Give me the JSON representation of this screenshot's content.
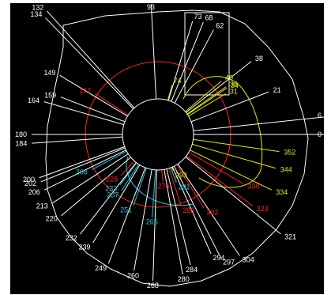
{
  "colors": {
    "background": "#000000",
    "white": "#ffffff",
    "red": "#ff2020",
    "yellow": "#e8e800",
    "cyan": "#20c8e0",
    "border": "#ffffff"
  },
  "rays": [
    {
      "label": "93",
      "angle": 93,
      "len": 165,
      "color": "white"
    },
    {
      "label": "73",
      "angle": 73,
      "len": 150,
      "color": "white"
    },
    {
      "label": "68",
      "angle": 68,
      "len": 153,
      "color": "white"
    },
    {
      "label": "62",
      "angle": 62,
      "len": 150,
      "color": "white"
    },
    {
      "label": "38",
      "angle": 38,
      "len": 150,
      "color": "white"
    },
    {
      "label": "21",
      "angle": 21,
      "len": 150,
      "color": "white"
    },
    {
      "label": "6",
      "angle": 6,
      "len": 222,
      "color": "white"
    },
    {
      "label": "0",
      "angle": 0,
      "len": 222,
      "color": "white"
    },
    {
      "label": "132",
      "angle": 132,
      "len": 210,
      "color": "white"
    },
    {
      "label": "134",
      "angle": 134,
      "len": 205,
      "color": "white"
    },
    {
      "label": "149",
      "angle": 149,
      "len": 145,
      "color": "white"
    },
    {
      "label": "159",
      "angle": 159,
      "len": 132,
      "color": "white"
    },
    {
      "label": "164",
      "angle": 164,
      "len": 150,
      "color": "white"
    },
    {
      "label": "180",
      "angle": 180,
      "len": 160,
      "color": "white"
    },
    {
      "label": "184",
      "angle": 184,
      "len": 160,
      "color": "white"
    },
    {
      "label": "200",
      "angle": 200,
      "len": 160,
      "color": "white"
    },
    {
      "label": "202",
      "angle": 202,
      "len": 160,
      "color": "white"
    },
    {
      "label": "206",
      "angle": 206,
      "len": 160,
      "color": "white"
    },
    {
      "label": "213",
      "angle": 213,
      "len": 160,
      "color": "white"
    },
    {
      "label": "220",
      "angle": 220,
      "len": 160,
      "color": "white"
    },
    {
      "label": "232",
      "angle": 232,
      "len": 160,
      "color": "white"
    },
    {
      "label": "239",
      "angle": 239,
      "len": 160,
      "color": "white"
    },
    {
      "label": "249",
      "angle": 249,
      "len": 175,
      "color": "white"
    },
    {
      "label": "260",
      "angle": 260,
      "len": 175,
      "color": "white"
    },
    {
      "label": "268",
      "angle": 268,
      "len": 185,
      "color": "white"
    },
    {
      "label": "280",
      "angle": 280,
      "len": 180,
      "color": "white"
    },
    {
      "label": "284",
      "angle": 284,
      "len": 170,
      "color": "white"
    },
    {
      "label": "294",
      "angle": 294,
      "len": 165,
      "color": "white"
    },
    {
      "label": "297",
      "angle": 297,
      "len": 175,
      "color": "white"
    },
    {
      "label": "304",
      "angle": 304,
      "len": 185,
      "color": "white"
    },
    {
      "label": "321",
      "angle": 321,
      "len": 200,
      "color": "white"
    },
    {
      "label": "74",
      "angle": 74,
      "len": 65,
      "color": "yellow"
    },
    {
      "label": "40",
      "angle": 40,
      "len": 105,
      "color": "yellow"
    },
    {
      "label": "35",
      "angle": 35,
      "len": 105,
      "color": "yellow"
    },
    {
      "label": "31",
      "angle": 31,
      "len": 100,
      "color": "yellow"
    },
    {
      "label": "34",
      "angle": 34,
      "len": 105,
      "color": "yellow"
    },
    {
      "label": "352",
      "angle": 352,
      "len": 155,
      "color": "yellow"
    },
    {
      "label": "344",
      "angle": 344,
      "len": 155,
      "color": "yellow"
    },
    {
      "label": "334",
      "angle": 334,
      "len": 160,
      "color": "yellow"
    },
    {
      "label": "293",
      "angle": 293,
      "len": 50,
      "color": "yellow"
    },
    {
      "label": "147",
      "angle": 147,
      "len": 95,
      "color": "red"
    },
    {
      "label": "228",
      "angle": 228,
      "len": 70,
      "color": "red"
    },
    {
      "label": "276",
      "angle": 276,
      "len": 60,
      "color": "red"
    },
    {
      "label": "288",
      "angle": 288,
      "len": 95,
      "color": "red"
    },
    {
      "label": "302",
      "angle": 302,
      "len": 110,
      "color": "red"
    },
    {
      "label": "323",
      "angle": 323,
      "len": 150,
      "color": "red"
    },
    {
      "label": "330",
      "angle": 330,
      "len": 125,
      "color": "red"
    },
    {
      "label": "208",
      "angle": 208,
      "len": 95,
      "color": "cyan"
    },
    {
      "label": "233",
      "angle": 233,
      "len": 80,
      "color": "cyan"
    },
    {
      "label": "237",
      "angle": 237,
      "len": 85,
      "color": "cyan"
    },
    {
      "label": "251",
      "angle": 251,
      "len": 95,
      "color": "cyan"
    },
    {
      "label": "266",
      "angle": 266,
      "len": 105,
      "color": "cyan"
    },
    {
      "label": "291",
      "angle": 291,
      "len": 65,
      "color": "cyan"
    }
  ]
}
